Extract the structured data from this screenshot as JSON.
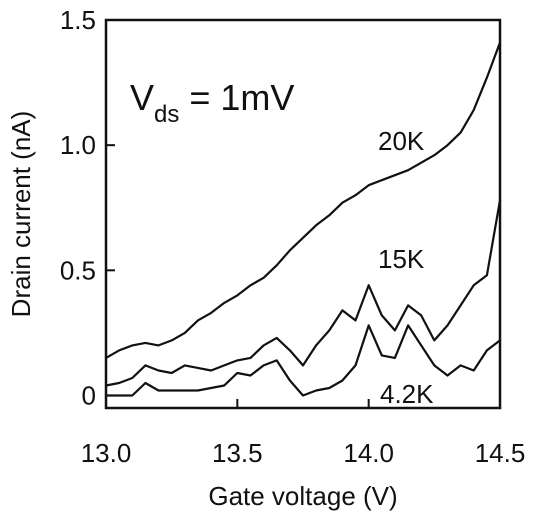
{
  "chart_data": {
    "type": "line",
    "title": "",
    "xlabel": "Gate voltage (V)",
    "ylabel": "Drain current (nA)",
    "xlim": [
      13.0,
      14.5
    ],
    "ylim": [
      -0.05,
      1.5
    ],
    "grid": false,
    "legend": "none",
    "x_ticks": [
      {
        "value": 13.0,
        "label": "13.0"
      },
      {
        "value": 13.5,
        "label": "13.5"
      },
      {
        "value": 14.0,
        "label": "14.0"
      },
      {
        "value": 14.5,
        "label": "14.5"
      }
    ],
    "y_ticks": [
      {
        "value": 0,
        "label": "0"
      },
      {
        "value": 0.5,
        "label": "0.5"
      },
      {
        "value": 1.0,
        "label": "1.0"
      },
      {
        "value": 1.5,
        "label": "1.5"
      }
    ],
    "annotation": {
      "main": "V",
      "sub": "ds",
      "rest": " = 1mV"
    },
    "series_color": "#111111",
    "series": [
      {
        "name": "20K",
        "x": [
          13.0,
          13.05,
          13.1,
          13.15,
          13.2,
          13.25,
          13.3,
          13.35,
          13.4,
          13.45,
          13.5,
          13.55,
          13.6,
          13.65,
          13.7,
          13.75,
          13.8,
          13.85,
          13.9,
          13.95,
          14.0,
          14.05,
          14.1,
          14.15,
          14.2,
          14.25,
          14.3,
          14.35,
          14.4,
          14.45,
          14.5
        ],
        "y": [
          0.15,
          0.18,
          0.2,
          0.21,
          0.2,
          0.22,
          0.25,
          0.3,
          0.33,
          0.37,
          0.4,
          0.44,
          0.47,
          0.52,
          0.58,
          0.63,
          0.68,
          0.72,
          0.77,
          0.8,
          0.84,
          0.86,
          0.88,
          0.9,
          0.93,
          0.96,
          1.0,
          1.05,
          1.14,
          1.27,
          1.41
        ]
      },
      {
        "name": "15K",
        "x": [
          13.0,
          13.05,
          13.1,
          13.15,
          13.2,
          13.25,
          13.3,
          13.35,
          13.4,
          13.45,
          13.5,
          13.55,
          13.6,
          13.65,
          13.7,
          13.75,
          13.8,
          13.85,
          13.9,
          13.95,
          14.0,
          14.05,
          14.1,
          14.15,
          14.2,
          14.25,
          14.3,
          14.35,
          14.4,
          14.45,
          14.5
        ],
        "y": [
          0.04,
          0.05,
          0.07,
          0.12,
          0.1,
          0.09,
          0.12,
          0.11,
          0.1,
          0.12,
          0.14,
          0.15,
          0.2,
          0.23,
          0.18,
          0.12,
          0.2,
          0.26,
          0.34,
          0.3,
          0.44,
          0.32,
          0.26,
          0.36,
          0.32,
          0.22,
          0.28,
          0.36,
          0.44,
          0.48,
          0.78
        ]
      },
      {
        "name": "4.2K",
        "x": [
          13.0,
          13.05,
          13.1,
          13.15,
          13.2,
          13.25,
          13.3,
          13.35,
          13.4,
          13.45,
          13.5,
          13.55,
          13.6,
          13.65,
          13.7,
          13.75,
          13.8,
          13.85,
          13.9,
          13.95,
          14.0,
          14.05,
          14.1,
          14.15,
          14.2,
          14.25,
          14.3,
          14.35,
          14.4,
          14.45,
          14.5
        ],
        "y": [
          0.0,
          0.0,
          0.0,
          0.05,
          0.02,
          0.02,
          0.02,
          0.02,
          0.03,
          0.04,
          0.09,
          0.08,
          0.12,
          0.14,
          0.06,
          0.0,
          0.02,
          0.03,
          0.06,
          0.12,
          0.28,
          0.16,
          0.15,
          0.28,
          0.2,
          0.12,
          0.08,
          0.12,
          0.1,
          0.18,
          0.22
        ]
      }
    ]
  }
}
